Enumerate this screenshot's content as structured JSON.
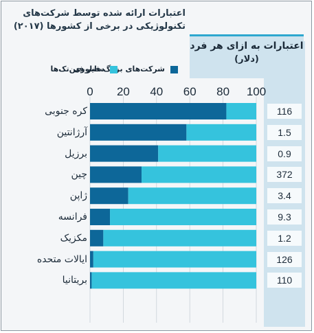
{
  "title": {
    "line1": "اعتبارات ارائه شده توسط شرکت‌های",
    "line2": "تکنولوژیکی در برخی از کشورها (۲۰۱۷)"
  },
  "right_header": {
    "line1": "اعتبارات به ازای هر فرد",
    "line2": "(دلار)"
  },
  "legend": {
    "big_tech": "شرکت‌های بزرگ فناوری",
    "fintech": "سایر فین‌تک‌ها"
  },
  "colors": {
    "big_tech": "#0d6799",
    "fintech": "#35c3dd",
    "panel": "#cfe3ee",
    "header_border": "#2da7cf"
  },
  "chart_data": {
    "type": "bar",
    "orientation": "horizontal",
    "stacked": true,
    "percent_scale": true,
    "xlim": [
      0,
      100
    ],
    "xticks": [
      0,
      20,
      40,
      60,
      80,
      100
    ],
    "categories": [
      "کره جنوبی",
      "آرژانتین",
      "برزیل",
      "چین",
      "ژاپن",
      "فرانسه",
      "مکزیک",
      "ایالات متحده",
      "بریتانیا"
    ],
    "series": [
      {
        "name": "شرکت‌های بزرگ فناوری",
        "values": [
          82,
          58,
          41,
          31,
          23,
          12,
          8,
          2,
          1
        ]
      },
      {
        "name": "سایر فین‌تک‌ها",
        "values": [
          18,
          42,
          59,
          69,
          77,
          88,
          92,
          98,
          99
        ]
      }
    ],
    "per_capita_credit_usd": [
      "116",
      "1.5",
      "0.9",
      "372",
      "3.4",
      "9.3",
      "1.2",
      "126",
      "110"
    ]
  }
}
